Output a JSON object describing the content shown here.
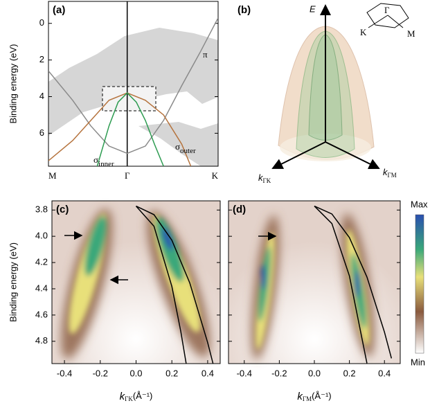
{
  "chart_data": [
    {
      "type": "line",
      "panel_label": "(a)",
      "y_label": "Binding energy (eV)",
      "xlim": [
        -0.866,
        1
      ],
      "xticks": [
        {
          "value": -0.866,
          "label": "M"
        },
        {
          "value": 0,
          "label": "Γ"
        },
        {
          "value": 1,
          "label": "K"
        }
      ],
      "ylim": [
        7.8,
        -1.2
      ],
      "yticks": [
        0,
        2,
        4,
        6
      ],
      "ytick_labels": true,
      "series": [
        {
          "name": "π",
          "color": "#8a8a8a",
          "x": [
            -0.866,
            -0.6,
            -0.4,
            -0.2,
            0,
            0.2,
            0.4,
            0.6,
            0.8,
            1
          ],
          "values": [
            2.6,
            4.2,
            5.6,
            6.7,
            7.1,
            6.7,
            5.3,
            3.4,
            1.6,
            -0.3
          ]
        },
        {
          "name": "σ",
          "subscript": "outer",
          "color": "#b5733d",
          "x": [
            -0.866,
            -0.6,
            -0.4,
            -0.2,
            0,
            0.2,
            0.4,
            0.6,
            0.7
          ],
          "values": [
            7.5,
            6.4,
            5.3,
            4.2,
            3.8,
            4.2,
            5.0,
            6.6,
            7.8
          ]
        },
        {
          "name": "σ",
          "subscript": "inner",
          "color": "#2c9b50",
          "x": [
            -0.33,
            -0.2,
            -0.1,
            0,
            0.1,
            0.2,
            0.3,
            0.4
          ],
          "values": [
            7.8,
            5.6,
            4.3,
            3.8,
            4.3,
            5.3,
            6.6,
            7.8
          ]
        }
      ]
    },
    {
      "type": "line",
      "panel_label": "(c)",
      "y_label": "Binding energy (eV)",
      "x_label": {
        "symbol": "k",
        "subscript": "ΓK",
        "unit": "(Å⁻¹)"
      },
      "xlim": [
        -0.47,
        0.47
      ],
      "xticks": [
        -0.4,
        -0.2,
        {
          "value": 0,
          "label": "0.0"
        },
        0.2,
        0.4
      ],
      "ylim": [
        4.97,
        3.73
      ],
      "yticks": [
        3.8,
        {
          "value": 4,
          "label": "4.0"
        },
        4.2,
        4.4,
        4.6,
        4.8
      ],
      "ytick_labels": true,
      "series": [
        {
          "color": "#000000",
          "x": [
            0,
            0.1,
            0.2,
            0.25,
            0.28
          ],
          "values": [
            3.77,
            3.923,
            4.382,
            4.726,
            4.97
          ]
        },
        {
          "color": "#000000",
          "x": [
            0,
            0.1,
            0.2,
            0.3,
            0.4,
            0.43
          ],
          "values": [
            3.77,
            3.835,
            4.03,
            4.355,
            4.81,
            4.97
          ]
        }
      ]
    },
    {
      "type": "line",
      "panel_label": "(d)",
      "x_label": {
        "symbol": "k",
        "subscript": "ΓM",
        "unit": "(Å⁻¹)"
      },
      "xlim": [
        -0.49,
        0.49
      ],
      "xticks": [
        -0.4,
        -0.2,
        {
          "value": 0,
          "label": "0.0"
        },
        0.2,
        0.4
      ],
      "ylim": [
        4.97,
        3.73
      ],
      "yticks": [
        3.8,
        4,
        4.2,
        4.4,
        4.6,
        4.8
      ],
      "ytick_labels": false,
      "series": [
        {
          "color": "#000000",
          "x": [
            0,
            0.1,
            0.2,
            0.3
          ],
          "values": [
            3.77,
            3.903,
            4.302,
            4.967
          ]
        },
        {
          "color": "#000000",
          "x": [
            0,
            0.1,
            0.2,
            0.3,
            0.4,
            0.44
          ],
          "values": [
            3.77,
            3.83,
            4.01,
            4.31,
            4.73,
            4.93
          ]
        }
      ]
    }
  ],
  "panel_b": {
    "label": "(b)",
    "axis_e": "E",
    "axis_gk": {
      "symbol": "k",
      "subscript": "ΓK"
    },
    "axis_gm": {
      "symbol": "k",
      "subscript": "ΓM"
    },
    "inset": {
      "gamma": "Γ",
      "k": "K",
      "m": "M"
    }
  },
  "colorbar": {
    "max_label": "Max",
    "min_label": "Min"
  }
}
